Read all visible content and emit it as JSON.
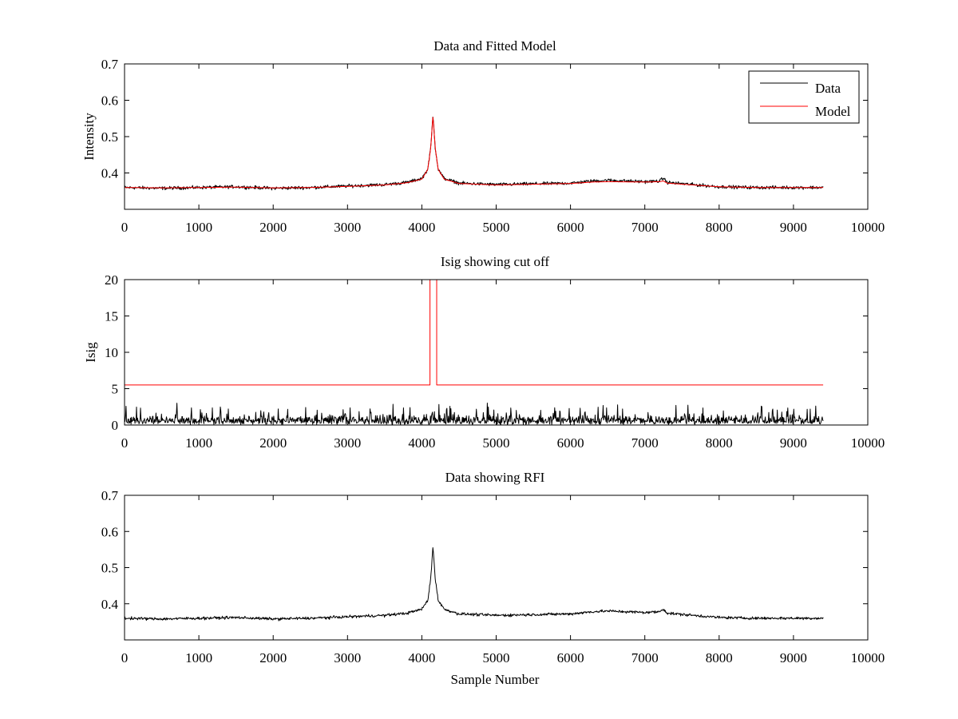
{
  "figure": {
    "background": "#ffffff",
    "axis_color": "#000000"
  },
  "chart_data": [
    {
      "type": "line",
      "title": "Data and Fitted Model",
      "xlabel": "",
      "ylabel": "Intensity",
      "xlim": [
        0,
        10000
      ],
      "ylim": [
        0.3,
        0.7
      ],
      "xticks": [
        0,
        1000,
        2000,
        3000,
        4000,
        5000,
        6000,
        7000,
        8000,
        9000,
        10000
      ],
      "yticks": [
        0.4,
        0.5,
        0.6,
        0.7
      ],
      "grid": false,
      "legend": {
        "position": "top-right",
        "entries": [
          "Data",
          "Model"
        ]
      },
      "series": [
        {
          "name": "Data",
          "color": "#000000",
          "noise": 0.007,
          "x": [
            0,
            500,
            1000,
            1500,
            2000,
            2500,
            3000,
            3500,
            3800,
            4000,
            4080,
            4120,
            4150,
            4180,
            4220,
            4300,
            4500,
            5000,
            5500,
            6000,
            6300,
            6500,
            7000,
            7200,
            7250,
            7300,
            8000,
            8500,
            9000,
            9400
          ],
          "y": [
            0.36,
            0.358,
            0.36,
            0.362,
            0.358,
            0.36,
            0.364,
            0.368,
            0.374,
            0.385,
            0.41,
            0.47,
            0.56,
            0.47,
            0.41,
            0.385,
            0.372,
            0.368,
            0.37,
            0.372,
            0.378,
            0.38,
            0.376,
            0.378,
            0.386,
            0.374,
            0.362,
            0.36,
            0.36,
            0.36
          ]
        },
        {
          "name": "Model",
          "color": "#ff0000",
          "noise": 0,
          "x": [
            0,
            500,
            1000,
            1500,
            2000,
            2500,
            3000,
            3500,
            3800,
            4000,
            4080,
            4120,
            4150,
            4180,
            4220,
            4300,
            4500,
            5000,
            5500,
            6000,
            6300,
            6500,
            7000,
            7200,
            7250,
            7300,
            8000,
            8500,
            9000,
            9400
          ],
          "y": [
            0.36,
            0.359,
            0.36,
            0.361,
            0.359,
            0.36,
            0.363,
            0.367,
            0.373,
            0.383,
            0.41,
            0.47,
            0.56,
            0.47,
            0.41,
            0.383,
            0.371,
            0.367,
            0.369,
            0.371,
            0.375,
            0.376,
            0.375,
            0.376,
            0.378,
            0.372,
            0.362,
            0.36,
            0.36,
            0.36
          ]
        }
      ]
    },
    {
      "type": "line",
      "title": "Isig showing cut off",
      "xlabel": "",
      "ylabel": "Isig",
      "xlim": [
        0,
        10000
      ],
      "ylim": [
        0,
        20
      ],
      "xticks": [
        0,
        1000,
        2000,
        3000,
        4000,
        5000,
        6000,
        7000,
        8000,
        9000,
        10000
      ],
      "yticks": [
        0,
        5,
        10,
        15,
        20
      ],
      "grid": false,
      "series": [
        {
          "name": "Isig",
          "color": "#000000",
          "noise_max": 4.3,
          "x_range": [
            0,
            9400
          ]
        },
        {
          "name": "Cut off",
          "color": "#ff0000",
          "x": [
            0,
            4110,
            4110,
            4200,
            4200,
            9400
          ],
          "y": [
            5.5,
            5.5,
            20,
            20,
            5.5,
            5.5
          ]
        }
      ]
    },
    {
      "type": "line",
      "title": "Data showing RFI",
      "xlabel": "Sample Number",
      "ylabel": "",
      "xlim": [
        0,
        10000
      ],
      "ylim": [
        0.3,
        0.7
      ],
      "xticks": [
        0,
        1000,
        2000,
        3000,
        4000,
        5000,
        6000,
        7000,
        8000,
        9000,
        10000
      ],
      "yticks": [
        0.4,
        0.5,
        0.6,
        0.7
      ],
      "grid": false,
      "series": [
        {
          "name": "Data",
          "color": "#000000",
          "noise": 0.006,
          "x": [
            0,
            500,
            1000,
            1500,
            2000,
            2500,
            3000,
            3500,
            3800,
            4000,
            4080,
            4120,
            4150,
            4180,
            4220,
            4300,
            4500,
            5000,
            5500,
            6000,
            6300,
            6500,
            7000,
            7200,
            7250,
            7300,
            8000,
            8500,
            9000,
            9400
          ],
          "y": [
            0.36,
            0.358,
            0.36,
            0.362,
            0.358,
            0.36,
            0.364,
            0.368,
            0.374,
            0.385,
            0.41,
            0.47,
            0.56,
            0.47,
            0.41,
            0.385,
            0.372,
            0.368,
            0.37,
            0.372,
            0.378,
            0.38,
            0.376,
            0.378,
            0.386,
            0.374,
            0.362,
            0.36,
            0.36,
            0.36
          ]
        }
      ]
    }
  ]
}
